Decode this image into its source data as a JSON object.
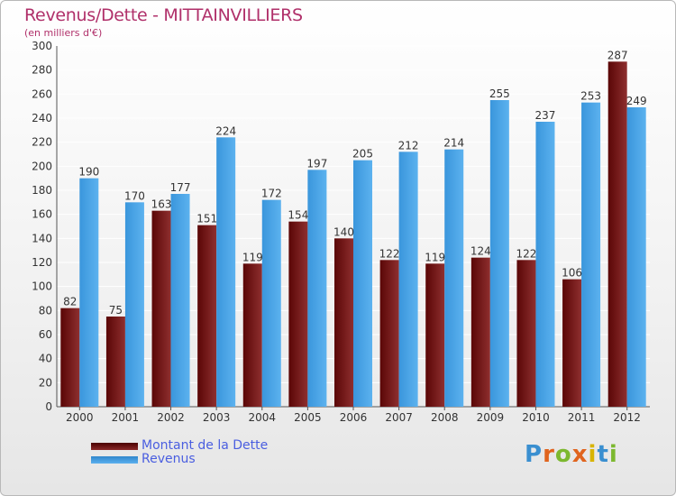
{
  "title": "Revenus/Dette - MITTAINVILLIERS",
  "subtitle": "(en milliers d'€)",
  "logo_text": "Proxiti",
  "colors": {
    "dette": "#6b1010",
    "revenus": "#3d9fe6",
    "title": "#b0306a",
    "legend_text": "#4a5ee0"
  },
  "chart_data": {
    "type": "bar",
    "title": "Revenus/Dette - MITTAINVILLIERS",
    "subtitle": "(en milliers d'€)",
    "categories": [
      "2000",
      "2001",
      "2002",
      "2003",
      "2004",
      "2005",
      "2006",
      "2007",
      "2008",
      "2009",
      "2010",
      "2011",
      "2012"
    ],
    "series": [
      {
        "name": "Montant de la Dette",
        "values": [
          82,
          75,
          163,
          151,
          119,
          154,
          140,
          122,
          119,
          124,
          122,
          106,
          287
        ]
      },
      {
        "name": "Revenus",
        "values": [
          190,
          170,
          177,
          224,
          172,
          197,
          205,
          212,
          214,
          255,
          237,
          253,
          249
        ]
      }
    ],
    "ylim": [
      0,
      300
    ],
    "yticks": [
      0,
      20,
      40,
      60,
      80,
      100,
      120,
      140,
      160,
      180,
      200,
      220,
      240,
      260,
      280,
      300
    ],
    "grid": true,
    "legend_position": "bottom-left"
  }
}
